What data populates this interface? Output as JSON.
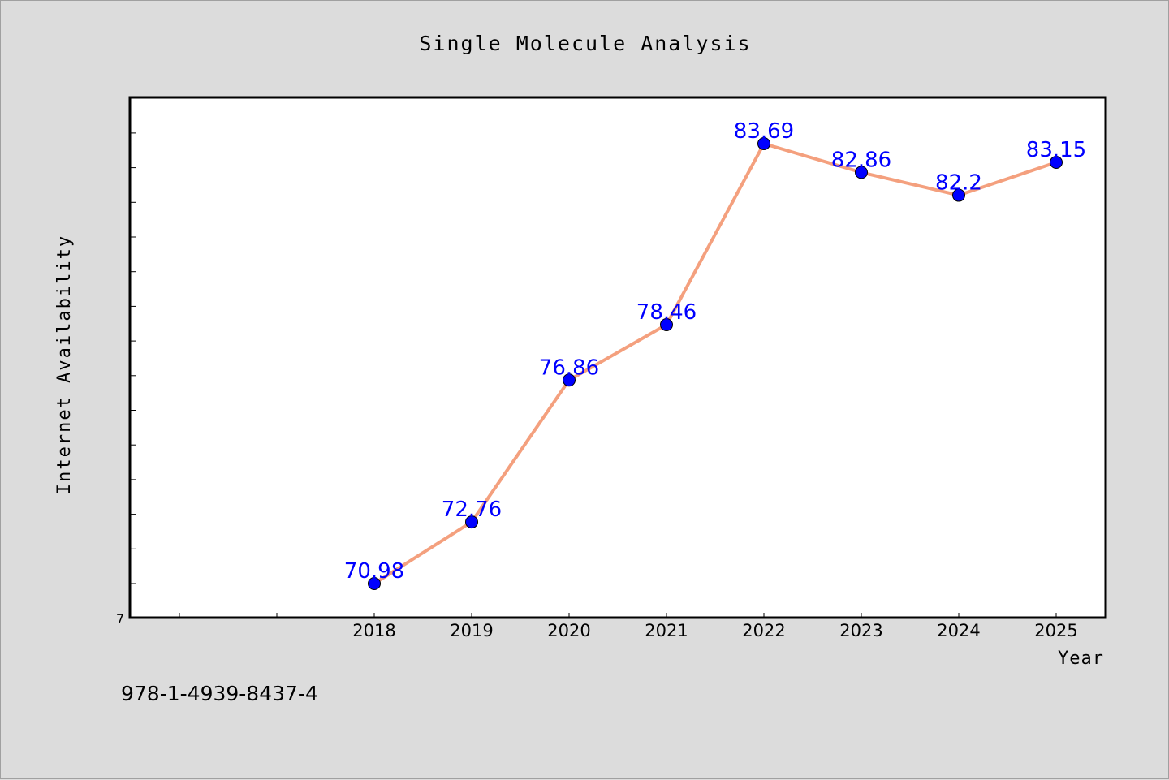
{
  "figure": {
    "background": "#dcdcdc",
    "footer_text": "978-1-4939-8437-4"
  },
  "chart_data": {
    "type": "line",
    "title": "Single Molecule Analysis",
    "xlabel": "Year",
    "ylabel": "Internet Availability",
    "categories": [
      "2018",
      "2019",
      "2020",
      "2021",
      "2022",
      "2023",
      "2024",
      "2025"
    ],
    "series": [
      {
        "values": [
          70.98,
          72.76,
          76.86,
          78.46,
          83.69,
          82.86,
          82.2,
          83.15
        ],
        "line_color": "#f4a07e",
        "marker_color": "#0000ff",
        "label_color": "#0000ff"
      }
    ],
    "data_labels": [
      "70.98",
      "72.76",
      "76.86",
      "78.46",
      "83.69",
      "82.86",
      "82.2",
      "83.15"
    ],
    "y_tick_label": "7",
    "ylim": [
      70,
      85
    ],
    "grid": false,
    "legend": "none"
  }
}
